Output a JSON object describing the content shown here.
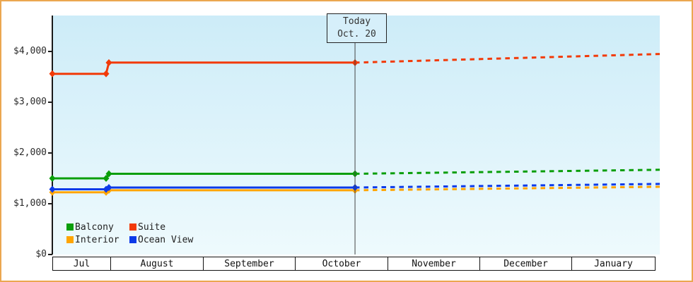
{
  "window": {
    "background": "#ffffff",
    "frame_color": "#eba750"
  },
  "today_marker": {
    "line1": "Today",
    "line2": "Oct. 20"
  },
  "legend": {
    "position": "bottom-left",
    "items": [
      {
        "label": "Balcony",
        "color": "#0a9e0a"
      },
      {
        "label": "Suite",
        "color": "#f23a08"
      },
      {
        "label": "Interior",
        "color": "#ffa500"
      },
      {
        "label": "Ocean View",
        "color": "#0c3ae8"
      }
    ]
  },
  "chart_data": {
    "type": "line",
    "title": "",
    "grid": false,
    "plot_background_gradient": [
      "#cdecf8",
      "#eefafd"
    ],
    "y_axis": {
      "label": "",
      "range": [
        0,
        4708
      ],
      "ticks": [
        {
          "value": 4000,
          "label": "$4,000"
        },
        {
          "value": 3000,
          "label": "$3,000"
        },
        {
          "value": 2000,
          "label": "$2,000"
        },
        {
          "value": 1000,
          "label": "$1,000"
        },
        {
          "value": 0,
          "label": "$0"
        }
      ]
    },
    "x_axis": {
      "months": [
        "Jul",
        "August",
        "September",
        "October",
        "November",
        "December",
        "January"
      ],
      "boundaries_frac": [
        0,
        0.0966,
        0.2503,
        0.4028,
        0.5564,
        0.7089,
        0.8614,
        1.0
      ]
    },
    "today_frac": 0.4983,
    "today_line_color": "#444444",
    "axis_color": "#1a1a1a",
    "series": [
      {
        "name": "Interior",
        "color": "#ffa500",
        "history": [
          [
            0,
            1225
          ],
          [
            0.0885,
            1225
          ],
          [
            0.0931,
            1265
          ],
          [
            0.4983,
            1265
          ]
        ],
        "forecast": [
          [
            0.4983,
            1265
          ],
          [
            1.0,
            1335
          ]
        ]
      },
      {
        "name": "Ocean View",
        "color": "#0c3ae8",
        "history": [
          [
            0,
            1285
          ],
          [
            0.0885,
            1285
          ],
          [
            0.0931,
            1320
          ],
          [
            0.4983,
            1320
          ]
        ],
        "forecast": [
          [
            0.4983,
            1320
          ],
          [
            1.0,
            1390
          ]
        ]
      },
      {
        "name": "Balcony",
        "color": "#0a9e0a",
        "history": [
          [
            0,
            1500
          ],
          [
            0.0885,
            1500
          ],
          [
            0.0931,
            1590
          ],
          [
            0.4983,
            1590
          ]
        ],
        "forecast": [
          [
            0.4983,
            1590
          ],
          [
            1.0,
            1670
          ]
        ]
      },
      {
        "name": "Suite",
        "color": "#f23a08",
        "history": [
          [
            0,
            3560
          ],
          [
            0.0885,
            3560
          ],
          [
            0.0931,
            3780
          ],
          [
            0.4983,
            3780
          ]
        ],
        "forecast": [
          [
            0.4983,
            3780
          ],
          [
            1.0,
            3950
          ]
        ]
      }
    ]
  }
}
